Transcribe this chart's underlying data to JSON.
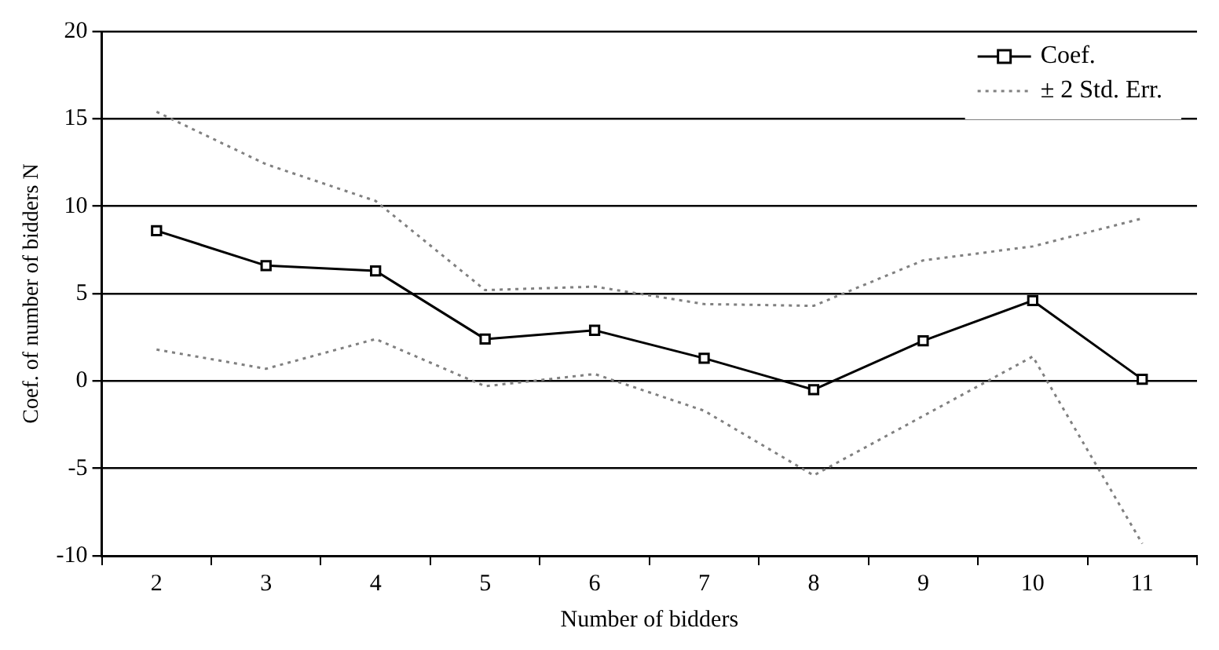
{
  "chart_data": {
    "type": "line",
    "xlabel": "Number of bidders",
    "ylabel": "Coef. of number of bidders N",
    "categories": [
      "2",
      "3",
      "4",
      "5",
      "6",
      "7",
      "8",
      "9",
      "10",
      "11"
    ],
    "series": [
      {
        "name": "Coef.",
        "color": "#000000",
        "marker": "square",
        "line_style": "solid",
        "values": [
          8.6,
          6.6,
          6.3,
          2.4,
          2.9,
          1.3,
          -0.5,
          2.3,
          4.6,
          0.1
        ]
      },
      {
        "name": "± 2 Std. Err.",
        "color": "#808080",
        "marker": "none",
        "line_style": "dotted",
        "values": [
          15.4,
          12.4,
          10.3,
          5.2,
          5.4,
          4.4,
          4.3,
          6.9,
          7.7,
          9.3
        ]
      },
      {
        "color": "#808080",
        "marker": "none",
        "line_style": "dotted",
        "values": [
          1.8,
          0.7,
          2.4,
          -0.3,
          0.4,
          -1.7,
          -5.4,
          -2.0,
          1.4,
          -9.3
        ]
      }
    ],
    "ylim": [
      -10,
      20
    ],
    "yticks": [
      -10,
      -5,
      0,
      5,
      10,
      15,
      20
    ],
    "grid": "y",
    "legend": "top right"
  }
}
